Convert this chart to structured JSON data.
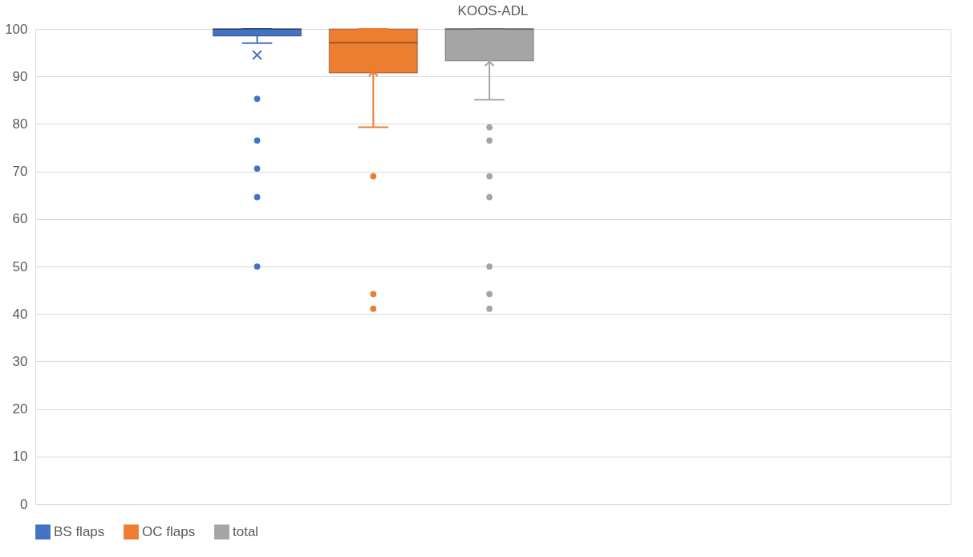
{
  "chart_data": {
    "type": "box",
    "title": "KOOS-ADL",
    "categories": [
      null
    ],
    "series": [
      {
        "name": "BS flaps",
        "color": "#4472c4",
        "boxes": [
          {
            "low": 97,
            "q1": 98.5,
            "median": 100,
            "q3": 100,
            "high": 100,
            "mean": 94.5,
            "outliers": [
              85.3,
              76.5,
              70.6,
              64.6,
              50
            ]
          }
        ]
      },
      {
        "name": "OC flaps",
        "color": "#ed7d31",
        "boxes": [
          {
            "low": 79.3,
            "q1": 90.7,
            "median": 97.1,
            "q3": 100,
            "high": 100,
            "mean": 91,
            "outliers": [
              69,
              44.2,
              41.1
            ]
          }
        ]
      },
      {
        "name": "total",
        "color": "#a5a5a5",
        "boxes": [
          {
            "low": 85.1,
            "q1": 93.3,
            "median": 100,
            "q3": 100,
            "high": 100,
            "mean": 93.1,
            "outliers": [
              79.3,
              76.5,
              69,
              64.6,
              50,
              44.2,
              41.1
            ]
          }
        ]
      }
    ],
    "ylim": [
      0,
      100
    ],
    "yticks": [
      0,
      10,
      20,
      30,
      40,
      50,
      60,
      70,
      80,
      90,
      100
    ],
    "grid": "y",
    "legend": "bottom"
  }
}
